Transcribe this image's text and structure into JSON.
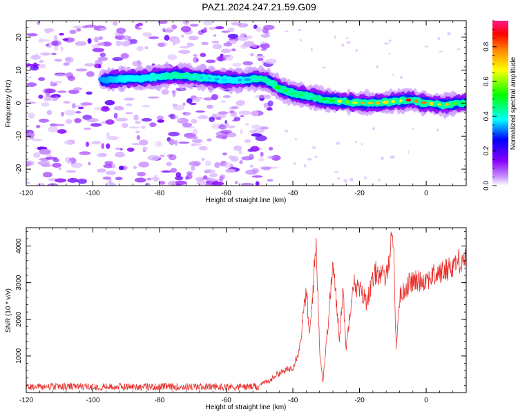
{
  "title": "PAZ1.2024.247.21.59.G09",
  "chart_data": [
    {
      "type": "heatmap",
      "xlabel": "Height of straight line (km)",
      "ylabel": "Frequency (Hz)",
      "xlim": [
        -120,
        12
      ],
      "ylim": [
        -25,
        25
      ],
      "xticks": [
        -120,
        -100,
        -80,
        -60,
        -40,
        -20,
        0
      ],
      "yticks": [
        -20,
        -10,
        0,
        10,
        20
      ],
      "colorbar": {
        "label": "Normalized spectral amplitude",
        "range": [
          0,
          0.95
        ],
        "ticks": [
          0.0,
          0.2,
          0.4,
          0.6,
          0.8
        ],
        "colors": [
          "#ffffff",
          "#cc99ff",
          "#8800ff",
          "#0000ff",
          "#00ffff",
          "#00ff00",
          "#ffff00",
          "#ff8800",
          "#ff0000",
          "#ff1a8c"
        ]
      },
      "ridge": {
        "height_km": [
          -97,
          -90,
          -85,
          -80,
          -75,
          -70,
          -65,
          -60,
          -55,
          -50,
          -47,
          -44,
          -40,
          -35,
          -30,
          -25,
          -20,
          -15,
          -10,
          -5,
          0,
          5,
          10,
          12
        ],
        "frequency_hz": [
          7,
          7.5,
          7.5,
          8,
          8.5,
          8,
          7.5,
          7,
          7,
          7.5,
          6.5,
          4.5,
          3,
          2,
          1,
          0.5,
          0,
          0,
          0.5,
          1,
          0,
          -0.5,
          0,
          0
        ],
        "peak_amplitude": [
          0.35,
          0.4,
          0.4,
          0.42,
          0.45,
          0.45,
          0.42,
          0.4,
          0.4,
          0.45,
          0.45,
          0.5,
          0.55,
          0.5,
          0.6,
          0.7,
          0.75,
          0.75,
          0.75,
          0.85,
          0.8,
          0.75,
          0.55,
          0.45
        ]
      },
      "noise_region_km": [
        -120,
        -45
      ]
    },
    {
      "type": "line",
      "xlabel": "Height of straight line (km)",
      "ylabel": "SNR (10 * v/v)",
      "xlim": [
        -120,
        12
      ],
      "ylim": [
        0,
        4500
      ],
      "xticks": [
        -120,
        -100,
        -80,
        -60,
        -40,
        -20,
        0
      ],
      "yticks": [
        1000,
        2000,
        3000,
        4000
      ],
      "color": "#e8302c",
      "envelope": {
        "x": [
          -120,
          -60,
          -55,
          -50,
          -47,
          -45,
          -42,
          -40,
          -38,
          -36,
          -35,
          -33,
          -32,
          -31,
          -30,
          -28,
          -26,
          -25,
          -24,
          -22,
          -20,
          -18,
          -15,
          -12,
          -10,
          -9,
          -8,
          -5,
          0,
          5,
          10,
          12
        ],
        "y": [
          150,
          150,
          180,
          250,
          300,
          500,
          600,
          700,
          1200,
          2800,
          1500,
          4100,
          1200,
          300,
          1300,
          3500,
          1500,
          2800,
          1200,
          3000,
          2800,
          2500,
          3300,
          3100,
          4500,
          1200,
          2600,
          3000,
          3100,
          3300,
          3600,
          3700
        ]
      },
      "noise_amplitude": [
        50,
        250
      ]
    }
  ]
}
